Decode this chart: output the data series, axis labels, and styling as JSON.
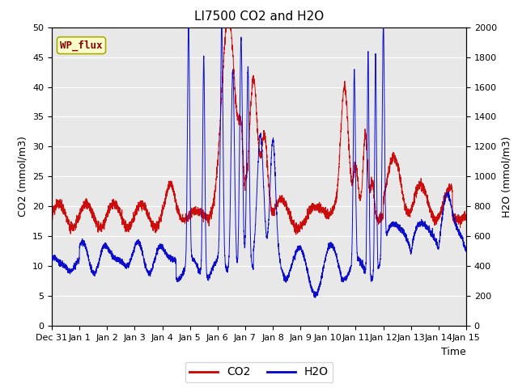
{
  "title": "LI7500 CO2 and H2O",
  "xlabel": "Time",
  "ylabel_left": "CO2 (mmol/m3)",
  "ylabel_right": "H2O (mmol/m3)",
  "annotation": "WP_flux",
  "xlim_days": [
    0,
    15
  ],
  "ylim_co2": [
    0,
    50
  ],
  "ylim_h2o": [
    0,
    2000
  ],
  "yticks_co2": [
    0,
    5,
    10,
    15,
    20,
    25,
    30,
    35,
    40,
    45,
    50
  ],
  "yticks_h2o": [
    0,
    200,
    400,
    600,
    800,
    1000,
    1200,
    1400,
    1600,
    1800,
    2000
  ],
  "xtick_labels": [
    "Dec 31",
    "Jan 1",
    "Jan 2",
    "Jan 3",
    "Jan 4",
    "Jan 5",
    "Jan 6",
    "Jan 7",
    "Jan 8",
    "Jan 9",
    "Jan 10",
    "Jan 11",
    "Jan 12",
    "Jan 13",
    "Jan 14",
    "Jan 15"
  ],
  "bg_color": "#e8e8e8",
  "co2_color": "#cc0000",
  "h2o_color": "#0000cc",
  "legend_co2": "CO2",
  "legend_h2o": "H2O",
  "title_fontsize": 11,
  "axis_fontsize": 9,
  "tick_fontsize": 8,
  "annotation_fontsize": 9
}
